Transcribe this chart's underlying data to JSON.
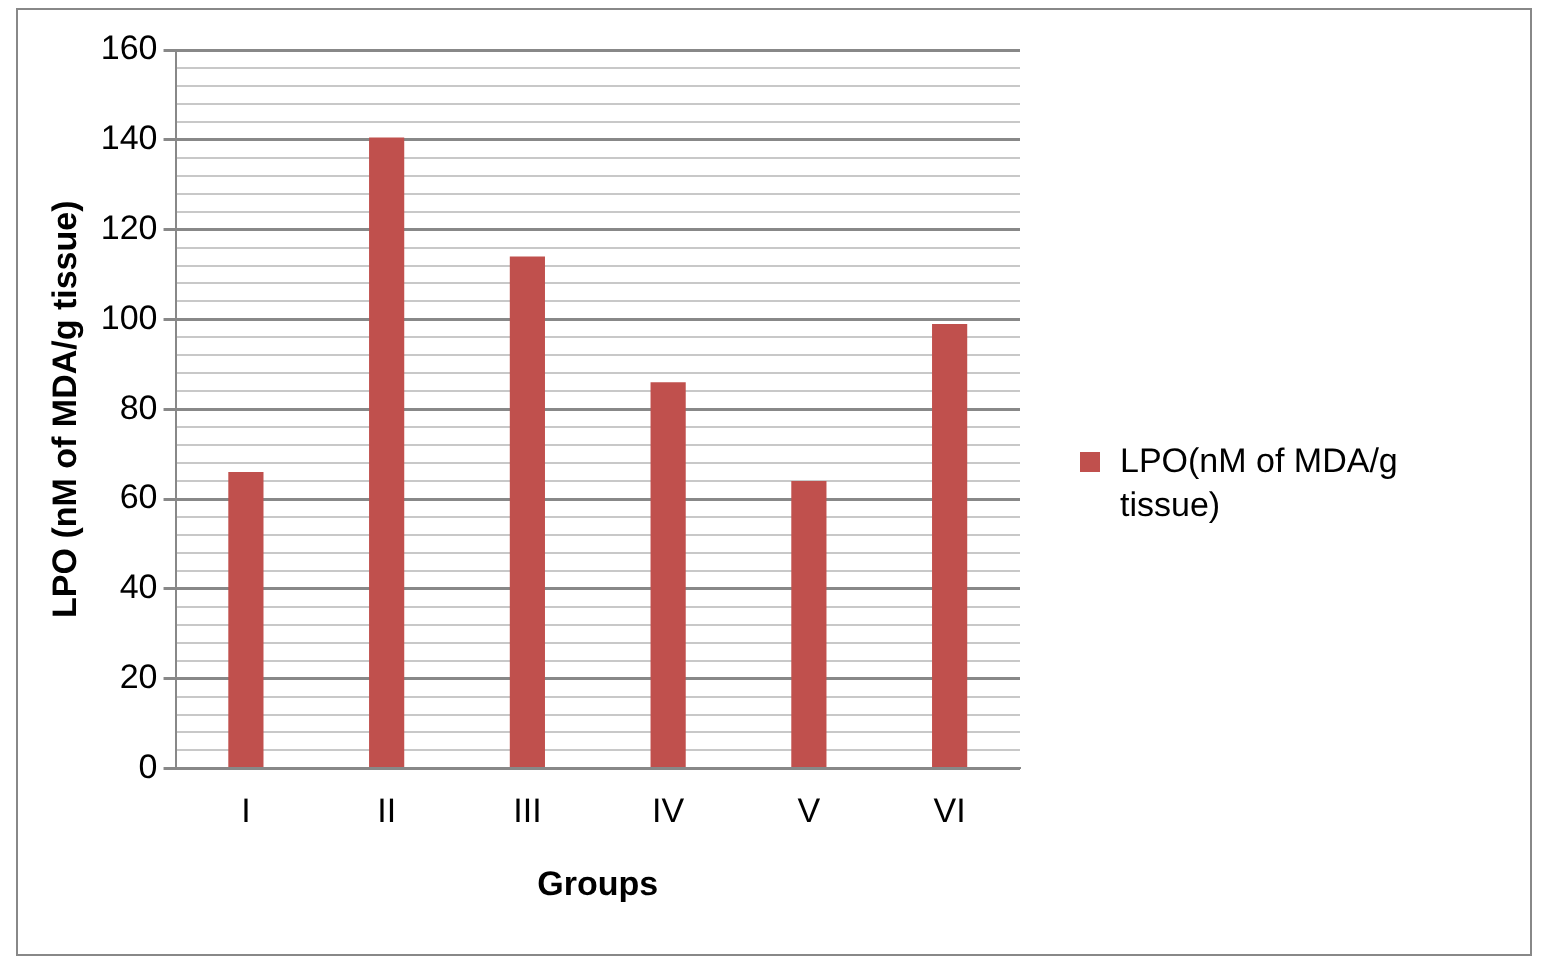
{
  "chart_data": {
    "type": "bar",
    "xlabel": "Groups",
    "ylabel": "LPO (nM of MDA/g tissue)",
    "categories": [
      "I",
      "II",
      "III",
      "IV",
      "V",
      "VI"
    ],
    "series": [
      {
        "name": "LPO(nM of MDA/g tissue)",
        "color": "#c0504d",
        "values": [
          66,
          140.5,
          114,
          86,
          64,
          99
        ]
      }
    ],
    "ylim": [
      0,
      160
    ],
    "yticks": [
      0,
      {
        "value": 4,
        "label": null
      },
      {
        "value": 8,
        "label": null
      },
      {
        "value": 12,
        "label": null
      },
      {
        "value": 16,
        "label": null
      },
      20,
      {
        "value": 24,
        "label": null
      },
      {
        "value": 28,
        "label": null
      },
      {
        "value": 32,
        "label": null
      },
      {
        "value": 36,
        "label": null
      },
      40,
      {
        "value": 44,
        "label": null
      },
      {
        "value": 48,
        "label": null
      },
      {
        "value": 52,
        "label": null
      },
      {
        "value": 56,
        "label": null
      },
      60,
      {
        "value": 64,
        "label": null
      },
      {
        "value": 68,
        "label": null
      },
      {
        "value": 72,
        "label": null
      },
      {
        "value": 76,
        "label": null
      },
      80,
      {
        "value": 84,
        "label": null
      },
      {
        "value": 88,
        "label": null
      },
      {
        "value": 92,
        "label": null
      },
      {
        "value": 96,
        "label": null
      },
      100,
      {
        "value": 104,
        "label": null
      },
      {
        "value": 108,
        "label": null
      },
      {
        "value": 112,
        "label": null
      },
      {
        "value": 116,
        "label": null
      },
      120,
      {
        "value": 124,
        "label": null
      },
      {
        "value": 128,
        "label": null
      },
      {
        "value": 132,
        "label": null
      },
      {
        "value": 136,
        "label": null
      },
      140,
      {
        "value": 144,
        "label": null
      },
      {
        "value": 148,
        "label": null
      },
      {
        "value": 152,
        "label": null
      },
      {
        "value": 156,
        "label": null
      },
      160
    ],
    "grid": "y",
    "legend": "right"
  }
}
